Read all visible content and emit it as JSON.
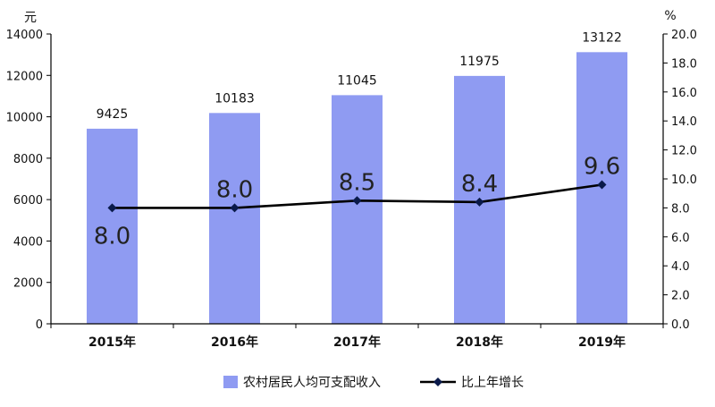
{
  "chart_data": {
    "type": "bar",
    "title": "",
    "categories": [
      "2015年",
      "2016年",
      "2017年",
      "2018年",
      "2019年"
    ],
    "series": [
      {
        "name": "农村居民人均可支配收入",
        "type": "bar",
        "axis": "left",
        "values": [
          9425,
          10183,
          11045,
          11975,
          13122
        ],
        "color": "#8f9bf2"
      },
      {
        "name": "比上年增长",
        "type": "line",
        "axis": "right",
        "values": [
          8.0,
          8.0,
          8.5,
          8.4,
          9.6
        ],
        "color": "#000000"
      }
    ],
    "y_left": {
      "unit": "元",
      "range": [
        0,
        14000
      ],
      "ticks": [
        "0",
        "2000",
        "4000",
        "6000",
        "8000",
        "10000",
        "12000",
        "14000"
      ]
    },
    "y_right": {
      "unit": "%",
      "range": [
        0,
        20
      ],
      "ticks": [
        "0.0",
        "2.0",
        "4.0",
        "6.0",
        "8.0",
        "10.0",
        "12.0",
        "14.0",
        "16.0",
        "18.0",
        "20.0"
      ]
    },
    "bar_labels": [
      "9425",
      "10183",
      "11045",
      "11975",
      "13122"
    ],
    "line_labels": [
      "8.0",
      "8.0",
      "8.5",
      "8.4",
      "9.6"
    ],
    "grid": false,
    "legend_position": "bottom"
  }
}
